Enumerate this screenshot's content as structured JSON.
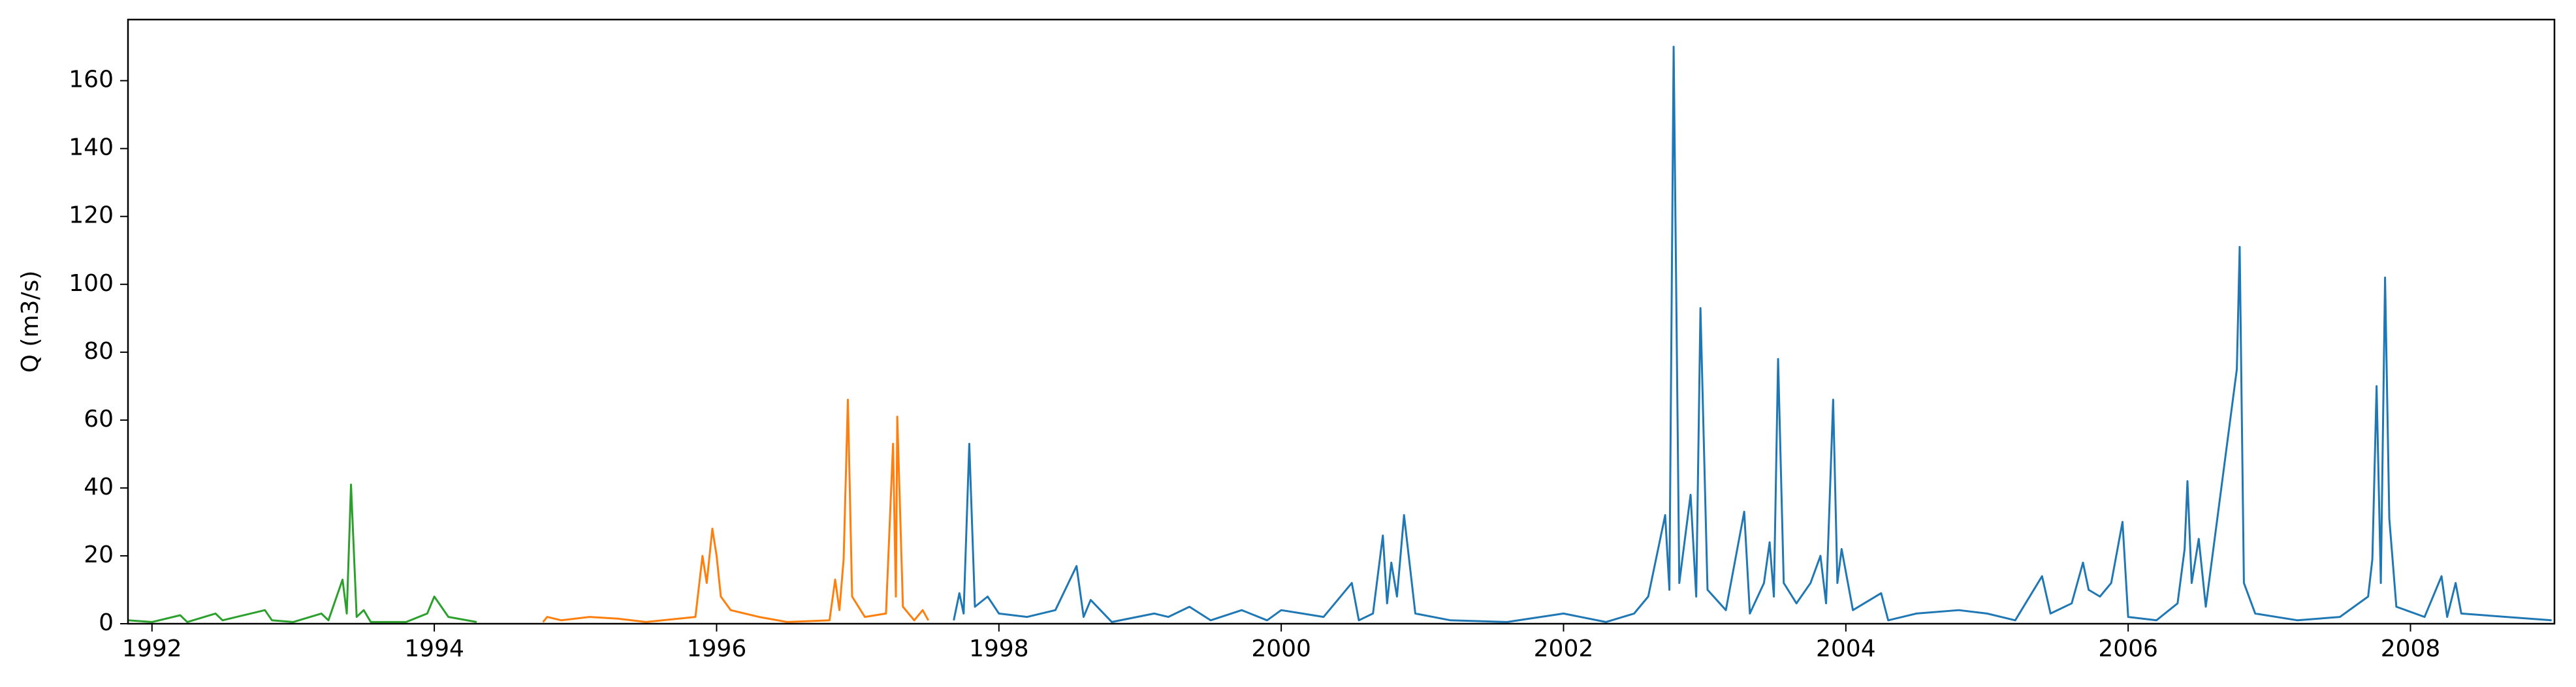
{
  "chart_data": {
    "type": "line",
    "y_label": "Q (m3/s)",
    "xlim": [
      1991.83,
      2009.02
    ],
    "xticks": [
      1992,
      1994,
      1996,
      1998,
      2000,
      2002,
      2004,
      2006,
      2008
    ],
    "ylim": [
      0,
      178
    ],
    "yticks": [
      0,
      20,
      40,
      60,
      80,
      100,
      120,
      140,
      160
    ],
    "grid": false,
    "series": [
      {
        "color": "#2ca02c",
        "x": [
          1991.83,
          1992.0,
          1992.2,
          1992.25,
          1992.45,
          1992.5,
          1992.6,
          1992.8,
          1992.85,
          1993.0,
          1993.2,
          1993.25,
          1993.35,
          1993.38,
          1993.41,
          1993.45,
          1993.5,
          1993.55,
          1993.8,
          1993.95,
          1994.0,
          1994.1,
          1994.3
        ],
        "values": [
          1,
          0.5,
          2.5,
          0.5,
          3,
          1,
          2,
          4,
          1,
          0.5,
          3,
          1,
          13,
          3,
          41,
          2,
          4,
          0.5,
          0.5,
          3,
          8,
          2,
          0.5
        ]
      },
      {
        "color": "#ff7f0e",
        "x": [
          1994.77,
          1994.8,
          1994.9,
          1995.1,
          1995.3,
          1995.5,
          1995.85,
          1995.9,
          1995.93,
          1995.97,
          1996.0,
          1996.03,
          1996.1,
          1996.3,
          1996.5,
          1996.8,
          1996.84,
          1996.87,
          1996.9,
          1996.93,
          1996.96,
          1997.05,
          1997.2,
          1997.25,
          1997.27,
          1997.28,
          1997.32,
          1997.4,
          1997.46,
          1997.5
        ],
        "values": [
          0.5,
          2,
          1,
          2,
          1.5,
          0.5,
          2,
          20,
          12,
          28,
          20,
          8,
          4,
          2,
          0.5,
          1,
          13,
          4,
          19,
          66,
          8,
          2,
          3,
          53,
          8,
          61,
          5,
          1,
          4,
          1
        ]
      },
      {
        "color": "#1f77b4",
        "x": [
          1997.68,
          1997.72,
          1997.75,
          1997.79,
          1997.83,
          1997.92,
          1998.0,
          1998.2,
          1998.4,
          1998.55,
          1998.6,
          1998.65,
          1998.8,
          1999.1,
          1999.2,
          1999.35,
          1999.5,
          1999.72,
          1999.9,
          2000.0,
          2000.15,
          2000.3,
          2000.5,
          2000.55,
          2000.65,
          2000.72,
          2000.75,
          2000.78,
          2000.82,
          2000.87,
          2000.95,
          2001.2,
          2001.6,
          2002.0,
          2002.3,
          2002.5,
          2002.6,
          2002.72,
          2002.75,
          2002.78,
          2002.82,
          2002.9,
          2002.94,
          2002.97,
          2003.02,
          2003.15,
          2003.28,
          2003.32,
          2003.42,
          2003.46,
          2003.49,
          2003.52,
          2003.56,
          2003.65,
          2003.75,
          2003.82,
          2003.86,
          2003.91,
          2003.94,
          2003.97,
          2004.05,
          2004.25,
          2004.3,
          2004.5,
          2004.8,
          2005.0,
          2005.2,
          2005.39,
          2005.45,
          2005.6,
          2005.68,
          2005.72,
          2005.8,
          2005.88,
          2005.96,
          2006.0,
          2006.2,
          2006.35,
          2006.4,
          2006.42,
          2006.45,
          2006.5,
          2006.55,
          2006.77,
          2006.79,
          2006.82,
          2006.9,
          2007.2,
          2007.5,
          2007.7,
          2007.73,
          2007.76,
          2007.79,
          2007.82,
          2007.85,
          2007.9,
          2008.1,
          2008.22,
          2008.26,
          2008.32,
          2008.36,
          2009.0
        ],
        "values": [
          1,
          9,
          3,
          53,
          5,
          8,
          3,
          2,
          4,
          17,
          2,
          7,
          0.5,
          3,
          2,
          5,
          1,
          4,
          1,
          4,
          3,
          2,
          12,
          1,
          3,
          26,
          6,
          18,
          8,
          32,
          3,
          1,
          0.5,
          3,
          0.5,
          3,
          8,
          32,
          10,
          170,
          12,
          38,
          8,
          93,
          10,
          4,
          33,
          3,
          12,
          24,
          8,
          78,
          12,
          6,
          12,
          20,
          6,
          66,
          12,
          22,
          4,
          9,
          1,
          3,
          4,
          3,
          1,
          14,
          3,
          6,
          18,
          10,
          8,
          12,
          30,
          2,
          1,
          6,
          22,
          42,
          12,
          25,
          5,
          75,
          111,
          12,
          3,
          1,
          2,
          8,
          19,
          70,
          12,
          102,
          31,
          5,
          2,
          14,
          2,
          12,
          3,
          1
        ]
      }
    ]
  }
}
